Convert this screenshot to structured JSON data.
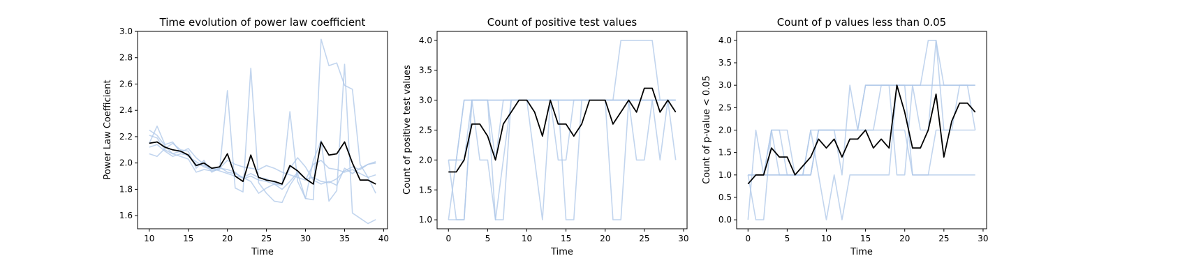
{
  "colors": {
    "background": "#ffffff",
    "thin_series": "#aec7e8",
    "mean_series": "#000000"
  },
  "chart_data": [
    {
      "type": "line",
      "title": "Time evolution of power law coefficient",
      "xlabel": "Time",
      "ylabel": "Power Law Coefficient",
      "xlim": [
        8.5,
        40.5
      ],
      "ylim": [
        1.5,
        3.0
      ],
      "xticks": [
        10,
        15,
        20,
        25,
        30,
        35,
        40
      ],
      "xtick_labels": [
        "10",
        "15",
        "20",
        "25",
        "30",
        "35",
        "40"
      ],
      "yticks": [
        1.6,
        1.8,
        2.0,
        2.2,
        2.4,
        2.6,
        2.8,
        3.0
      ],
      "ytick_labels": [
        "1.6",
        "1.8",
        "2.0",
        "2.2",
        "2.4",
        "2.6",
        "2.8",
        "3.0"
      ],
      "grid": false,
      "x": [
        10,
        11,
        12,
        13,
        14,
        15,
        16,
        17,
        18,
        19,
        20,
        21,
        22,
        23,
        24,
        25,
        26,
        27,
        28,
        29,
        30,
        31,
        32,
        33,
        34,
        35,
        36,
        37,
        38,
        39
      ],
      "series": [
        {
          "color": "#aec7e8",
          "values": [
            2.25,
            2.21,
            2.13,
            2.07,
            2.05,
            2.03,
            1.93,
            1.95,
            1.94,
            1.95,
            2.55,
            1.81,
            1.78,
            2.72,
            1.85,
            1.77,
            1.71,
            1.7,
            1.83,
            1.92,
            1.73,
            1.72,
            2.94,
            2.74,
            2.76,
            2.59,
            2.56,
            1.99,
            1.89,
            1.77
          ]
        },
        {
          "color": "#aec7e8",
          "values": [
            2.15,
            2.28,
            2.14,
            2.16,
            2.08,
            2.11,
            2.04,
            1.99,
            1.96,
            1.97,
            1.93,
            1.92,
            1.89,
            1.86,
            1.77,
            1.81,
            1.84,
            1.83,
            2.39,
            1.86,
            1.73,
            2.02,
            2.17,
            1.71,
            1.79,
            2.75,
            1.62,
            1.58,
            1.54,
            1.57
          ]
        },
        {
          "color": "#aec7e8",
          "values": [
            2.07,
            2.05,
            2.11,
            2.15,
            2.1,
            2.09,
            1.96,
            2.02,
            1.93,
            1.96,
            2.02,
            1.99,
            1.97,
            1.96,
            1.95,
            1.98,
            1.96,
            1.93,
            1.91,
            1.89,
            1.87,
            1.99,
            2.02,
            1.96,
            1.95,
            1.93,
            1.95,
            1.92,
            1.89,
            1.91
          ]
        },
        {
          "color": "#aec7e8",
          "values": [
            2.21,
            2.19,
            2.1,
            2.07,
            2.09,
            2.05,
            2.01,
            1.97,
            1.95,
            1.96,
            1.95,
            1.93,
            1.88,
            1.9,
            1.87,
            1.86,
            1.84,
            1.8,
            1.86,
            1.93,
            1.88,
            1.89,
            1.86,
            1.85,
            1.88,
            1.94,
            1.97,
            1.95,
            1.99,
            2.0
          ]
        },
        {
          "color": "#aec7e8",
          "values": [
            2.12,
            2.14,
            2.09,
            2.05,
            2.07,
            2.06,
            1.99,
            1.98,
            1.96,
            1.94,
            1.92,
            1.9,
            1.89,
            1.92,
            1.89,
            1.88,
            1.85,
            1.84,
            1.96,
            2.04,
            1.97,
            1.87,
            1.84,
            1.86,
            1.83,
            1.96,
            1.92,
            1.96,
            1.99,
            2.01
          ]
        },
        {
          "color": "#000000",
          "values": [
            2.15,
            2.16,
            2.12,
            2.1,
            2.09,
            2.06,
            1.98,
            2.0,
            1.96,
            1.97,
            2.07,
            1.9,
            1.86,
            2.06,
            1.89,
            1.87,
            1.86,
            1.84,
            1.98,
            1.94,
            1.88,
            1.84,
            2.16,
            2.06,
            2.07,
            2.16,
            2.0,
            1.87,
            1.87,
            1.84
          ]
        }
      ]
    },
    {
      "type": "line",
      "title": "Count of positive test values",
      "xlabel": "Time",
      "ylabel": "Count of positive test values",
      "xlim": [
        -1.45,
        30.45
      ],
      "ylim": [
        0.85,
        4.15
      ],
      "xticks": [
        0,
        5,
        10,
        15,
        20,
        25,
        30
      ],
      "xtick_labels": [
        "0",
        "5",
        "10",
        "15",
        "20",
        "25",
        "30"
      ],
      "yticks": [
        1.0,
        1.5,
        2.0,
        2.5,
        3.0,
        3.5,
        4.0
      ],
      "ytick_labels": [
        "1.0",
        "1.5",
        "2.0",
        "2.5",
        "3.0",
        "3.5",
        "4.0"
      ],
      "grid": false,
      "x": [
        0,
        1,
        2,
        3,
        4,
        5,
        6,
        7,
        8,
        9,
        10,
        11,
        12,
        13,
        14,
        15,
        16,
        17,
        18,
        19,
        20,
        21,
        22,
        23,
        24,
        25,
        26,
        27,
        28,
        29
      ],
      "series": [
        {
          "color": "#aec7e8",
          "values": [
            1,
            1,
            1,
            3,
            3,
            3,
            1,
            1,
            3,
            3,
            3,
            3,
            3,
            3,
            3,
            3,
            3,
            3,
            3,
            3,
            3,
            3,
            4,
            4,
            4,
            4,
            4,
            3,
            3,
            3
          ]
        },
        {
          "color": "#aec7e8",
          "values": [
            2,
            2,
            3,
            3,
            3,
            3,
            3,
            3,
            3,
            3,
            3,
            2,
            1,
            3,
            3,
            1,
            1,
            3,
            3,
            3,
            3,
            1,
            1,
            3,
            3,
            3,
            3,
            2,
            3,
            2
          ]
        },
        {
          "color": "#aec7e8",
          "values": [
            2,
            1,
            1,
            3,
            2,
            2,
            1,
            2,
            3,
            3,
            3,
            3,
            3,
            3,
            2,
            2,
            3,
            3,
            3,
            3,
            3,
            3,
            3,
            3,
            2,
            2,
            3,
            3,
            3,
            3
          ]
        },
        {
          "color": "#aec7e8",
          "values": [
            1,
            2,
            3,
            3,
            3,
            3,
            3,
            3,
            3,
            3,
            3,
            3,
            3,
            3,
            3,
            3,
            3,
            3,
            3,
            3,
            3,
            3,
            3,
            3,
            3,
            3,
            3,
            3,
            3,
            3
          ]
        },
        {
          "color": "#aec7e8",
          "values": [
            2,
            2,
            2,
            3,
            3,
            3,
            2,
            3,
            3,
            3,
            3,
            3,
            3,
            3,
            3,
            3,
            3,
            3,
            3,
            3,
            3,
            3,
            3,
            3,
            3,
            3,
            3,
            3,
            3,
            3
          ]
        },
        {
          "color": "#000000",
          "values": [
            1.8,
            1.8,
            2.0,
            2.6,
            2.6,
            2.4,
            2.0,
            2.6,
            2.8,
            3.0,
            3.0,
            2.8,
            2.4,
            3.0,
            2.6,
            2.6,
            2.4,
            2.6,
            3.0,
            3.0,
            3.0,
            2.6,
            2.8,
            3.0,
            2.8,
            3.2,
            3.2,
            2.8,
            3.0,
            2.8
          ]
        }
      ]
    },
    {
      "type": "line",
      "title": "Count of p values less than 0.05",
      "xlabel": "Time",
      "ylabel": "Count of p-value < 0.05",
      "xlim": [
        -1.45,
        30.45
      ],
      "ylim": [
        -0.2,
        4.2
      ],
      "xticks": [
        0,
        5,
        10,
        15,
        20,
        25,
        30
      ],
      "xtick_labels": [
        "0",
        "5",
        "10",
        "15",
        "20",
        "25",
        "30"
      ],
      "yticks": [
        0.0,
        0.5,
        1.0,
        1.5,
        2.0,
        2.5,
        3.0,
        3.5,
        4.0
      ],
      "ytick_labels": [
        "0.0",
        "0.5",
        "1.0",
        "1.5",
        "2.0",
        "2.5",
        "3.0",
        "3.5",
        "4.0"
      ],
      "grid": false,
      "x": [
        0,
        1,
        2,
        3,
        4,
        5,
        6,
        7,
        8,
        9,
        10,
        11,
        12,
        13,
        14,
        15,
        16,
        17,
        18,
        19,
        20,
        21,
        22,
        23,
        24,
        25,
        26,
        27,
        28,
        29
      ],
      "series": [
        {
          "color": "#aec7e8",
          "values": [
            0,
            2,
            1,
            2,
            2,
            2,
            1,
            1,
            1,
            2,
            2,
            2,
            1,
            3,
            2,
            3,
            3,
            3,
            3,
            3,
            3,
            3,
            3,
            4,
            4,
            3,
            3,
            3,
            3,
            3
          ]
        },
        {
          "color": "#aec7e8",
          "values": [
            1,
            0,
            0,
            2,
            2,
            1,
            1,
            1,
            1,
            2,
            2,
            2,
            2,
            2,
            2,
            2,
            2,
            3,
            3,
            1,
            1,
            3,
            2,
            2,
            4,
            2,
            2,
            3,
            3,
            2
          ]
        },
        {
          "color": "#aec7e8",
          "values": [
            1,
            1,
            1,
            1,
            1,
            1,
            1,
            1,
            2,
            2,
            2,
            2,
            2,
            2,
            2,
            3,
            3,
            3,
            3,
            3,
            3,
            3,
            3,
            3,
            3,
            3,
            3,
            3,
            3,
            3
          ]
        },
        {
          "color": "#aec7e8",
          "values": [
            1,
            1,
            1,
            2,
            1,
            1,
            1,
            1,
            2,
            1,
            0,
            1,
            0,
            1,
            1,
            1,
            1,
            1,
            1,
            3,
            3,
            1,
            1,
            1,
            1,
            1,
            1,
            1,
            1,
            1
          ]
        },
        {
          "color": "#aec7e8",
          "values": [
            1,
            1,
            1,
            1,
            1,
            1,
            1,
            1,
            1,
            2,
            2,
            2,
            2,
            2,
            2,
            2,
            2,
            2,
            2,
            2,
            2,
            1,
            1,
            1,
            2,
            2,
            2,
            2,
            2,
            2
          ]
        },
        {
          "color": "#000000",
          "values": [
            0.8,
            1.0,
            1.0,
            1.6,
            1.4,
            1.4,
            1.0,
            1.2,
            1.4,
            1.8,
            1.6,
            1.8,
            1.4,
            1.8,
            1.8,
            2.0,
            1.6,
            1.8,
            1.6,
            3.0,
            2.4,
            1.6,
            1.6,
            2.0,
            2.8,
            1.4,
            2.2,
            2.6,
            2.6,
            2.4
          ]
        }
      ]
    }
  ]
}
